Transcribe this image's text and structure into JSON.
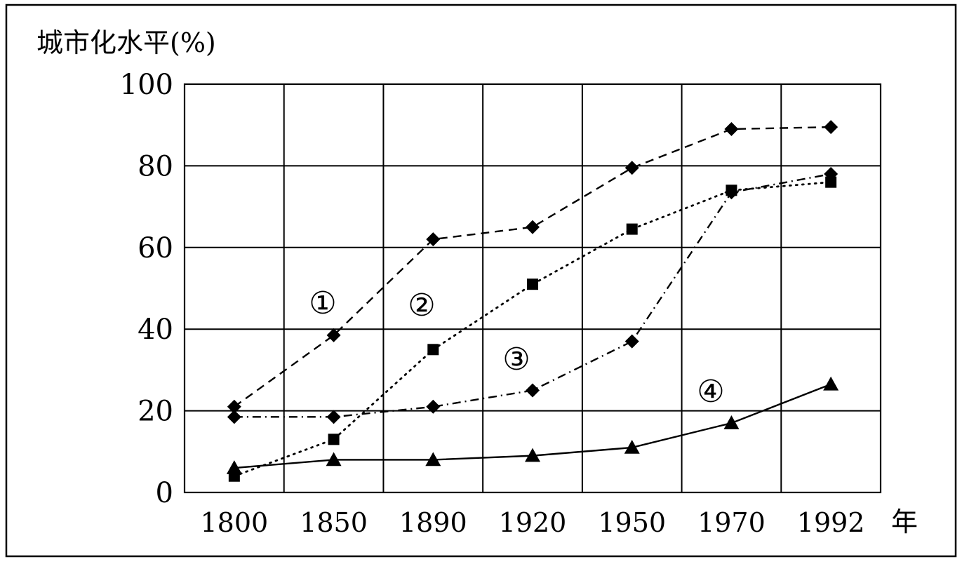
{
  "chart_data": {
    "type": "line",
    "ylabel": "城市化水平(%)",
    "xunit": "年",
    "categories": [
      "1800",
      "1850",
      "1890",
      "1920",
      "1950",
      "1970",
      "1992"
    ],
    "yticks": [
      "0",
      "20",
      "40",
      "60",
      "80",
      "100"
    ],
    "ylim": [
      0,
      100
    ],
    "grid": true,
    "legend": "none",
    "series": [
      {
        "label": "①",
        "marker": "diamond",
        "line": "dashed",
        "points": [
          [
            1800,
            21
          ],
          [
            1850,
            38.5
          ],
          [
            1890,
            62
          ],
          [
            1920,
            65
          ],
          [
            1950,
            79.5
          ],
          [
            1970,
            89
          ],
          [
            1992,
            89.5
          ]
        ]
      },
      {
        "label": "②",
        "marker": "square",
        "line": "dotted",
        "points": [
          [
            1800,
            4
          ],
          [
            1850,
            13
          ],
          [
            1890,
            35
          ],
          [
            1920,
            51
          ],
          [
            1950,
            64.5
          ],
          [
            1970,
            74
          ],
          [
            1992,
            76
          ]
        ]
      },
      {
        "label": "③",
        "marker": "diamond",
        "line": "dash-dot",
        "points": [
          [
            1800,
            18.5
          ],
          [
            1850,
            18.5
          ],
          [
            1890,
            21
          ],
          [
            1920,
            25
          ],
          [
            1950,
            37
          ],
          [
            1970,
            73.5
          ],
          [
            1992,
            78
          ]
        ]
      },
      {
        "label": "④",
        "marker": "triangle",
        "line": "solid",
        "points": [
          [
            1800,
            6
          ],
          [
            1850,
            8
          ],
          [
            1890,
            8
          ],
          [
            1920,
            9
          ],
          [
            1950,
            11
          ],
          [
            1970,
            17
          ],
          [
            1992,
            26.5
          ]
        ]
      }
    ]
  }
}
